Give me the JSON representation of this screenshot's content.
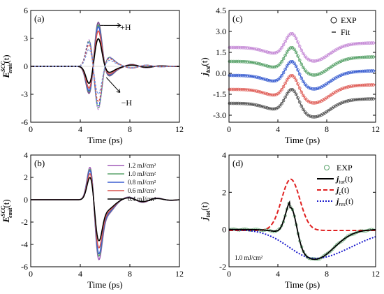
{
  "chart_data": [
    {
      "panel": "(a)",
      "type": "line",
      "xlabel": "Time (ps)",
      "ylabel_main": "E",
      "ylabel_sub": "emit",
      "ylabel_sup": "SCC",
      "ylabel_tail": "(t)",
      "xlim": [
        0,
        12
      ],
      "ylim": [
        -6,
        6
      ],
      "xticks": [
        0,
        4,
        8,
        12
      ],
      "yticks": [
        -6,
        -3,
        0,
        3,
        6
      ],
      "annotations": [
        {
          "text": "+H",
          "x": 6.2,
          "y": 4.2
        },
        {
          "text": "−H",
          "x": 7.3,
          "y": -3.9
        }
      ],
      "series": [
        {
          "color": "#7a4a8c",
          "amp": 5.1,
          "style": "solid"
        },
        {
          "color": "#5aa36b",
          "amp": 4.8,
          "style": "solid"
        },
        {
          "color": "#3b5fd1",
          "amp": 4.6,
          "style": "solid"
        },
        {
          "color": "#d9534f",
          "amp": 4.1,
          "style": "solid"
        },
        {
          "color": "#000000",
          "amp": 3.2,
          "style": "solid"
        },
        {
          "color": "#c58ad6",
          "amp": -5.0,
          "style": "dashed"
        },
        {
          "color": "#5aa36b",
          "amp": -4.8,
          "style": "dashed"
        },
        {
          "color": "#3b5fd1",
          "amp": -4.6,
          "style": "dashed"
        },
        {
          "color": "#d9534f",
          "amp": -4.1,
          "style": "dashed"
        },
        {
          "color": "#7b9de0",
          "amp": -3.2,
          "style": "dashed"
        }
      ]
    },
    {
      "panel": "(b)",
      "type": "line",
      "xlabel": "Time (ps)",
      "ylabel_main": "E",
      "ylabel_sub": "emit",
      "ylabel_sup": "SCC",
      "ylabel_tail": "(t)",
      "xlim": [
        0,
        12
      ],
      "ylim": [
        -6,
        4
      ],
      "xticks": [
        0,
        4,
        8,
        12
      ],
      "yticks": [
        -6,
        -4,
        -2,
        0,
        2,
        4
      ],
      "series": [
        {
          "name": "1.2 mJ/cm²",
          "color": "#a05ab8",
          "amp": 5.1
        },
        {
          "name": "1.0 mJ/cm²",
          "color": "#5aa36b",
          "amp": 4.8
        },
        {
          "name": "0.8 mJ/cm²",
          "color": "#3b5fd1",
          "amp": 4.6
        },
        {
          "name": "0.6 mJ/cm²",
          "color": "#d9534f",
          "amp": 4.1
        },
        {
          "name": "0.4 mJ/cm²",
          "color": "#000000",
          "amp": 3.5
        }
      ]
    },
    {
      "panel": "(c)",
      "type": "line",
      "xlabel": "Time (ps)",
      "ylabel": "j_tot(t)",
      "ylabel_main": "j",
      "ylabel_sub": "tot",
      "ylabel_tail": "(t)",
      "xlim": [
        0,
        12
      ],
      "ylim": [
        -3.5,
        4.5
      ],
      "xticks": [
        0,
        4,
        8,
        12
      ],
      "yticks": [
        -3.0,
        -1.5,
        0.0,
        1.5,
        3.0,
        4.5
      ],
      "ytick_labels": [
        "-3.0",
        "-1.5",
        "0.0",
        "1.5",
        "3.0",
        "4.5"
      ],
      "legend": {
        "exp": "EXP",
        "fit": "Fit"
      },
      "series": [
        {
          "color": "#c58ad6",
          "offset": 2.0,
          "amp": 1.0
        },
        {
          "color": "#5aa36b",
          "offset": 1.0,
          "amp": 1.0
        },
        {
          "color": "#3b5fd1",
          "offset": 0.0,
          "amp": 1.0
        },
        {
          "color": "#e0605a",
          "offset": -1.0,
          "amp": 1.0
        },
        {
          "color": "#555555",
          "offset": -2.0,
          "amp": 1.0
        }
      ]
    },
    {
      "panel": "(d)",
      "type": "line",
      "xlabel": "Time (ps)",
      "ylabel_main": "j",
      "ylabel_sub": "tot",
      "ylabel_tail": "(t)",
      "xlim": [
        0,
        12
      ],
      "ylim": [
        -2,
        4
      ],
      "xticks": [
        0,
        4,
        8,
        12
      ],
      "yticks": [
        -2,
        0,
        2,
        4
      ],
      "note": "1.0 mJ/cm²",
      "legend": [
        {
          "label": "EXP",
          "main": "EXP",
          "color": "#5aa36b",
          "kind": "circle"
        },
        {
          "label": "j_tot(t)",
          "main": "j",
          "sub": "tot",
          "tail": "(t)",
          "color": "#000000",
          "kind": "solid"
        },
        {
          "label": "j_c(t)",
          "main": "j",
          "sub": "c",
          "tail": "(t)",
          "color": "#e02020",
          "kind": "dashed"
        },
        {
          "label": "j_res(t)",
          "main": "j",
          "sub": "res",
          "tail": "(t)",
          "color": "#1a1acc",
          "kind": "dotted"
        }
      ]
    }
  ]
}
